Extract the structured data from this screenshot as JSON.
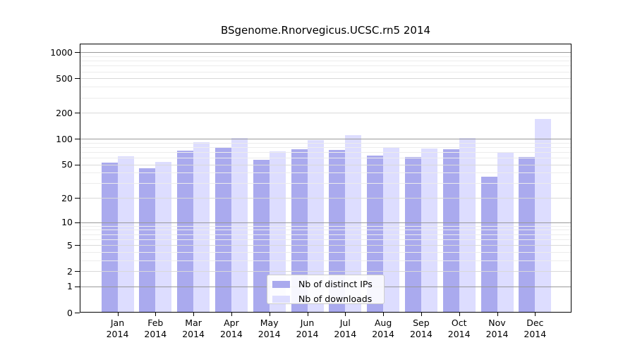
{
  "title": "BSgenome.Rnorvegicus.UCSC.rn5 2014",
  "chart_data": {
    "type": "bar",
    "title": "BSgenome.Rnorvegicus.UCSC.rn5 2014",
    "categories": [
      "Jan 2014",
      "Feb 2014",
      "Mar 2014",
      "Apr 2014",
      "May 2014",
      "Jun 2014",
      "Jul 2014",
      "Aug 2014",
      "Sep 2014",
      "Oct 2014",
      "Nov 2014",
      "Dec 2014"
    ],
    "series": [
      {
        "name": "Nb of distinct IPs",
        "color": "#aaaaee",
        "values": [
          53,
          45,
          72,
          79,
          57,
          75,
          74,
          64,
          61,
          75,
          36,
          61
        ]
      },
      {
        "name": "Nb of downloads",
        "color": "#ddddff",
        "values": [
          62,
          54,
          91,
          102,
          71,
          96,
          110,
          78,
          77,
          101,
          68,
          170
        ]
      }
    ],
    "xlabel": "",
    "ylabel": "",
    "y_scale": "log10(value+1)",
    "y_ticks": [
      0,
      1,
      2,
      5,
      10,
      20,
      50,
      100,
      200,
      500,
      1000
    ],
    "ylim": [
      0,
      1000
    ],
    "grid": "horizontal",
    "legend_position": "bottom-center"
  },
  "legend": {
    "items": [
      {
        "label": "Nb of distinct IPs",
        "swatch_color": "#aaaaee"
      },
      {
        "label": "Nb of downloads",
        "swatch_color": "#ddddff"
      }
    ]
  },
  "colors": {
    "series_ips": "#aaaaee",
    "series_downloads": "#ddddff",
    "grid_major": "#999999",
    "grid_labeled": "#d9d9d9",
    "grid_minor": "#ececec",
    "axis": "#000000",
    "background": "#ffffff"
  }
}
